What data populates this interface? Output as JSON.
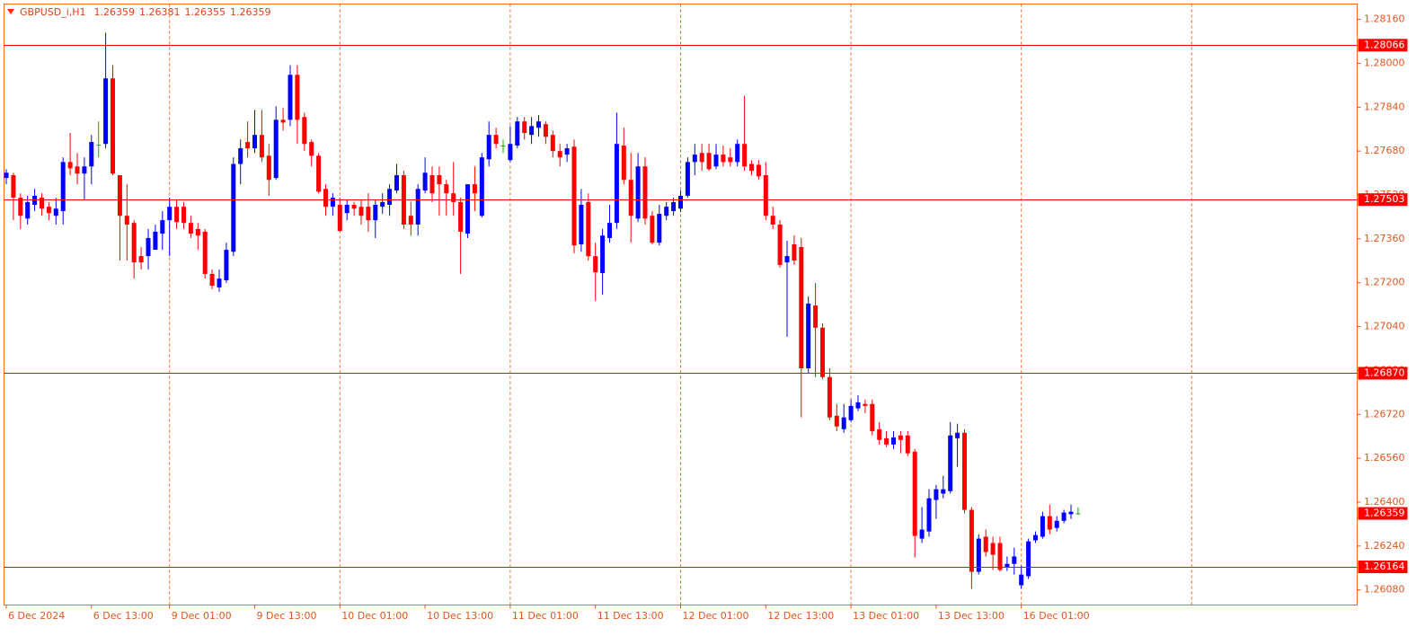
{
  "chart_data": {
    "type": "candlestick",
    "symbol": "GBPUSD_i,H1",
    "ylim": [
      1.26025,
      1.28216
    ],
    "yticks": [
      {
        "value": 1.2816,
        "label": "1.28160"
      },
      {
        "value": 1.28,
        "label": "1.28000"
      },
      {
        "value": 1.2784,
        "label": "1.27840"
      },
      {
        "value": 1.2768,
        "label": "1.27680"
      },
      {
        "value": 1.2752,
        "label": "1.27520"
      },
      {
        "value": 1.2736,
        "label": "1.27360"
      },
      {
        "value": 1.272,
        "label": "1.27200"
      },
      {
        "value": 1.2704,
        "label": "1.27040"
      },
      {
        "value": 1.2688,
        "label": "1.26880"
      },
      {
        "value": 1.2672,
        "label": "1.26720"
      },
      {
        "value": 1.2656,
        "label": "1.26560"
      },
      {
        "value": 1.264,
        "label": "1.26400"
      },
      {
        "value": 1.2624,
        "label": "1.26240"
      },
      {
        "value": 1.2608,
        "label": "1.26080"
      }
    ],
    "levels": [
      1.28066,
      1.27503,
      {
        "value": 1.2687,
        "label": "1.26870"
      },
      1.26164
    ],
    "grid": true,
    "colors": {
      "up": "#0000ff",
      "down": "#ff0000",
      "doji": "#00b000",
      "level": "#ff0000",
      "grid": "#f06a2a",
      "axis": "#e0561e"
    },
    "categories": [
      "6 Dec 2024",
      null,
      null,
      null,
      null,
      null,
      null,
      null,
      null,
      null,
      null,
      null,
      "6 Dec 13:00",
      null,
      null,
      null,
      null,
      null,
      null,
      null,
      null,
      null,
      null,
      "9 Dec 01:00",
      null,
      null,
      null,
      null,
      null,
      null,
      null,
      null,
      null,
      null,
      null,
      "9 Dec 13:00",
      null,
      null,
      null,
      null,
      null,
      null,
      null,
      null,
      null,
      null,
      null,
      "10 Dec 01:00",
      null,
      null,
      null,
      null,
      null,
      null,
      null,
      null,
      null,
      null,
      null,
      "10 Dec 13:00",
      null,
      null,
      null,
      null,
      null,
      null,
      null,
      null,
      null,
      null,
      null,
      "11 Dec 01:00",
      null,
      null,
      null,
      null,
      null,
      null,
      null,
      null,
      null,
      null,
      null,
      "11 Dec 13:00",
      null,
      null,
      null,
      null,
      null,
      null,
      null,
      null,
      null,
      null,
      null,
      "12 Dec 01:00",
      null,
      null,
      null,
      null,
      null,
      null,
      null,
      null,
      null,
      null,
      null,
      "12 Dec 13:00",
      null,
      null,
      null,
      null,
      null,
      null,
      null,
      null,
      null,
      null,
      null,
      "13 Dec 01:00",
      null,
      null,
      null,
      null,
      null,
      null,
      null,
      null,
      null,
      null,
      null,
      "13 Dec 13:00",
      null,
      null,
      null,
      null,
      null,
      null,
      null,
      null,
      null,
      null,
      null,
      "16 Dec 01:00",
      null,
      null,
      null,
      null,
      null,
      null,
      null,
      null
    ],
    "candles": [
      [
        1.27582,
        1.27614,
        1.27559,
        1.27601
      ],
      [
        1.27592,
        1.27601,
        1.27428,
        1.2751
      ],
      [
        1.2751,
        1.27526,
        1.27396,
        1.27444
      ],
      [
        1.27434,
        1.27517,
        1.27412,
        1.27494
      ],
      [
        1.27484,
        1.27542,
        1.27461,
        1.27517
      ],
      [
        1.2751,
        1.27526,
        1.27444,
        1.2747
      ],
      [
        1.27477,
        1.27494,
        1.27428,
        1.27454
      ],
      [
        1.27444,
        1.2751,
        1.27412,
        1.2747
      ],
      [
        1.27461,
        1.27657,
        1.27412,
        1.2764
      ],
      [
        1.2764,
        1.27746,
        1.27592,
        1.27617
      ],
      [
        1.27624,
        1.27673,
        1.27559,
        1.27598
      ],
      [
        1.27598,
        1.27657,
        1.27503,
        1.27624
      ],
      [
        1.27624,
        1.27739,
        1.27559,
        1.27713
      ],
      [
        1.27703,
        1.27788,
        1.27657,
        1.27703
      ],
      [
        1.27706,
        1.28111,
        1.2769,
        1.27945
      ],
      [
        1.27945,
        1.27993,
        1.27592,
        1.27598
      ],
      [
        1.27592,
        1.27592,
        1.27281,
        1.27444
      ],
      [
        1.27444,
        1.27559,
        1.27281,
        1.27412
      ],
      [
        1.27418,
        1.27428,
        1.27215,
        1.27274
      ],
      [
        1.27297,
        1.2733,
        1.27248,
        1.27274
      ],
      [
        1.27297,
        1.27396,
        1.27248,
        1.27363
      ],
      [
        1.2732,
        1.27412,
        1.2733,
        1.27386
      ],
      [
        1.27379,
        1.27461,
        1.2732,
        1.27428
      ],
      [
        1.27428,
        1.2751,
        1.27297,
        1.27477
      ],
      [
        1.27477,
        1.27503,
        1.27396,
        1.27421
      ],
      [
        1.27477,
        1.27494,
        1.27396,
        1.27418
      ],
      [
        1.27418,
        1.27444,
        1.27363,
        1.27379
      ],
      [
        1.27396,
        1.27418,
        1.2732,
        1.27372
      ],
      [
        1.27386,
        1.27396,
        1.27215,
        1.27232
      ],
      [
        1.27232,
        1.27248,
        1.27176,
        1.27189
      ],
      [
        1.27183,
        1.27248,
        1.27167,
        1.27215
      ],
      [
        1.27209,
        1.27346,
        1.27199,
        1.2732
      ],
      [
        1.27313,
        1.27657,
        1.27297,
        1.27633
      ],
      [
        1.27633,
        1.27722,
        1.27559,
        1.2769
      ],
      [
        1.27713,
        1.27788,
        1.27657,
        1.2769
      ],
      [
        1.2769,
        1.2783,
        1.27673,
        1.27739
      ],
      [
        1.27739,
        1.2783,
        1.2764,
        1.27657
      ],
      [
        1.27663,
        1.27706,
        1.27517,
        1.27575
      ],
      [
        1.27582,
        1.27843,
        1.27575,
        1.27794
      ],
      [
        1.27794,
        1.27837,
        1.27755,
        1.27784
      ],
      [
        1.27794,
        1.27993,
        1.27771,
        1.27958
      ],
      [
        1.27958,
        1.27993,
        1.27706,
        1.27794
      ],
      [
        1.27804,
        1.2782,
        1.2768,
        1.27706
      ],
      [
        1.27713,
        1.27722,
        1.27624,
        1.27663
      ],
      [
        1.27663,
        1.27673,
        1.27526,
        1.27532
      ],
      [
        1.27542,
        1.27559,
        1.27444,
        1.27477
      ],
      [
        1.27477,
        1.27526,
        1.27444,
        1.2751
      ],
      [
        1.27484,
        1.2751,
        1.27386,
        1.27389
      ],
      [
        1.27454,
        1.27503,
        1.27428,
        1.27484
      ],
      [
        1.27484,
        1.27494,
        1.27444,
        1.2747
      ],
      [
        1.27477,
        1.27503,
        1.27412,
        1.27444
      ],
      [
        1.27477,
        1.27526,
        1.27386,
        1.27428
      ],
      [
        1.27428,
        1.27503,
        1.27363,
        1.27484
      ],
      [
        1.27477,
        1.27526,
        1.27451,
        1.27494
      ],
      [
        1.27484,
        1.27559,
        1.27444,
        1.27542
      ],
      [
        1.27536,
        1.27633,
        1.27526,
        1.27592
      ],
      [
        1.27592,
        1.27608,
        1.27396,
        1.27412
      ],
      [
        1.27444,
        1.27494,
        1.27372,
        1.27412
      ],
      [
        1.27412,
        1.27559,
        1.27372,
        1.27542
      ],
      [
        1.27536,
        1.27657,
        1.27526,
        1.27601
      ],
      [
        1.27592,
        1.27624,
        1.27494,
        1.27526
      ],
      [
        1.27592,
        1.27624,
        1.27444,
        1.27559
      ],
      [
        1.27559,
        1.27575,
        1.27444,
        1.27526
      ],
      [
        1.27526,
        1.2764,
        1.27444,
        1.27494
      ],
      [
        1.27494,
        1.2751,
        1.27232,
        1.27386
      ],
      [
        1.27379,
        1.27559,
        1.27363,
        1.27559
      ],
      [
        1.27559,
        1.27624,
        1.27461,
        1.27526
      ],
      [
        1.27444,
        1.27673,
        1.27438,
        1.27657
      ],
      [
        1.2765,
        1.27788,
        1.27624,
        1.27739
      ],
      [
        1.27739,
        1.27765,
        1.2769,
        1.27706
      ],
      [
        1.277,
        1.27722,
        1.27673,
        1.277
      ],
      [
        1.27647,
        1.27771,
        1.2764,
        1.27706
      ],
      [
        1.277,
        1.27804,
        1.2769,
        1.27788
      ],
      [
        1.27788,
        1.27804,
        1.27722,
        1.27746
      ],
      [
        1.27739,
        1.27804,
        1.27706,
        1.27771
      ],
      [
        1.27765,
        1.27811,
        1.27732,
        1.27788
      ],
      [
        1.27778,
        1.27788,
        1.27706,
        1.27732
      ],
      [
        1.27739,
        1.27755,
        1.27657,
        1.2768
      ],
      [
        1.2768,
        1.27706,
        1.27624,
        1.27657
      ],
      [
        1.27667,
        1.27706,
        1.2764,
        1.2769
      ],
      [
        1.27696,
        1.27722,
        1.27307,
        1.27336
      ],
      [
        1.2734,
        1.27542,
        1.27313,
        1.27484
      ],
      [
        1.27494,
        1.27526,
        1.27281,
        1.27297
      ],
      [
        1.27297,
        1.27346,
        1.27134,
        1.27238
      ],
      [
        1.27235,
        1.27396,
        1.27156,
        1.27372
      ],
      [
        1.27363,
        1.27484,
        1.27346,
        1.27418
      ],
      [
        1.27418,
        1.2782,
        1.27396,
        1.27706
      ],
      [
        1.277,
        1.27765,
        1.27559,
        1.27575
      ],
      [
        1.27575,
        1.27673,
        1.27346,
        1.27444
      ],
      [
        1.27434,
        1.27673,
        1.27421,
        1.27624
      ],
      [
        1.27624,
        1.27657,
        1.27412,
        1.27434
      ],
      [
        1.27444,
        1.27461,
        1.2734,
        1.27346
      ],
      [
        1.27346,
        1.27484,
        1.27336,
        1.27451
      ],
      [
        1.27444,
        1.27494,
        1.27428,
        1.27477
      ],
      [
        1.27461,
        1.2751,
        1.27444,
        1.27494
      ],
      [
        1.2747,
        1.27536,
        1.27457,
        1.27517
      ],
      [
        1.27517,
        1.27657,
        1.2751,
        1.2764
      ],
      [
        1.2764,
        1.27706,
        1.27592,
        1.27667
      ],
      [
        1.27673,
        1.27706,
        1.27608,
        1.2764
      ],
      [
        1.27673,
        1.27706,
        1.27608,
        1.27614
      ],
      [
        1.27624,
        1.27706,
        1.27614,
        1.27667
      ],
      [
        1.27667,
        1.277,
        1.27624,
        1.2764
      ],
      [
        1.27657,
        1.2769,
        1.27624,
        1.2764
      ],
      [
        1.2764,
        1.27722,
        1.27624,
        1.27706
      ],
      [
        1.27706,
        1.27882,
        1.27608,
        1.27624
      ],
      [
        1.27633,
        1.27647,
        1.27592,
        1.27608
      ],
      [
        1.2763,
        1.27647,
        1.27575,
        1.27588
      ],
      [
        1.27592,
        1.2764,
        1.27428,
        1.27444
      ],
      [
        1.27444,
        1.27477,
        1.27396,
        1.27412
      ],
      [
        1.27412,
        1.27428,
        1.27255,
        1.27265
      ],
      [
        1.27274,
        1.27353,
        1.27003,
        1.27297
      ],
      [
        1.2734,
        1.27372,
        1.27265,
        1.27281
      ],
      [
        1.2733,
        1.27363,
        1.26709,
        1.26888
      ],
      [
        1.26888,
        1.2715,
        1.26872,
        1.27124
      ],
      [
        1.27117,
        1.27199,
        1.26856,
        1.27036
      ],
      [
        1.27036,
        1.27052,
        1.26849,
        1.26856
      ],
      [
        1.26856,
        1.26888,
        1.26699,
        1.26709
      ],
      [
        1.26715,
        1.26758,
        1.26659,
        1.26676
      ],
      [
        1.26666,
        1.26758,
        1.26653,
        1.26709
      ],
      [
        1.26699,
        1.26774,
        1.26692,
        1.26751
      ],
      [
        1.26742,
        1.2679,
        1.26732,
        1.26764
      ],
      [
        1.26758,
        1.26774,
        1.26725,
        1.26751
      ],
      [
        1.26758,
        1.26774,
        1.26643,
        1.26659
      ],
      [
        1.26666,
        1.26692,
        1.2661,
        1.26627
      ],
      [
        1.26633,
        1.26659,
        1.26601,
        1.2661
      ],
      [
        1.2661,
        1.26659,
        1.26594,
        1.26636
      ],
      [
        1.26643,
        1.26659,
        1.26578,
        1.26627
      ],
      [
        1.26643,
        1.26659,
        1.26568,
        1.26578
      ],
      [
        1.26584,
        1.26594,
        1.26198,
        1.26277
      ],
      [
        1.26267,
        1.26382,
        1.26251,
        1.263
      ],
      [
        1.26293,
        1.26447,
        1.26274,
        1.26414
      ],
      [
        1.26408,
        1.26463,
        1.26339,
        1.26447
      ],
      [
        1.26431,
        1.26496,
        1.26414,
        1.26447
      ],
      [
        1.2644,
        1.26692,
        1.26431,
        1.26643
      ],
      [
        1.26633,
        1.26686,
        1.26529,
        1.26653
      ],
      [
        1.26653,
        1.26666,
        1.26359,
        1.26372
      ],
      [
        1.26372,
        1.26382,
        1.26084,
        1.26146
      ],
      [
        1.26146,
        1.26283,
        1.26136,
        1.26267
      ],
      [
        1.26274,
        1.263,
        1.26202,
        1.26218
      ],
      [
        1.26251,
        1.26274,
        1.26153,
        1.26208
      ],
      [
        1.26251,
        1.26274,
        1.26146,
        1.26153
      ],
      [
        1.26162,
        1.26202,
        1.26149,
        1.26175
      ],
      [
        1.26175,
        1.26234,
        1.26136,
        1.26202
      ],
      [
        1.26097,
        1.26169,
        1.26084,
        1.26136
      ],
      [
        1.2613,
        1.26267,
        1.2612,
        1.26257
      ],
      [
        1.26261,
        1.26293,
        1.26251,
        1.2628
      ],
      [
        1.26274,
        1.26365,
        1.26267,
        1.26349
      ],
      [
        1.26349,
        1.26391,
        1.26283,
        1.263
      ],
      [
        1.26306,
        1.26349,
        1.26293,
        1.26332
      ],
      [
        1.26332,
        1.26372,
        1.26323,
        1.26362
      ],
      [
        1.26356,
        1.26391,
        1.26339,
        1.26365
      ],
      [
        1.26359,
        1.26381,
        1.26355,
        1.26359
      ]
    ]
  }
}
